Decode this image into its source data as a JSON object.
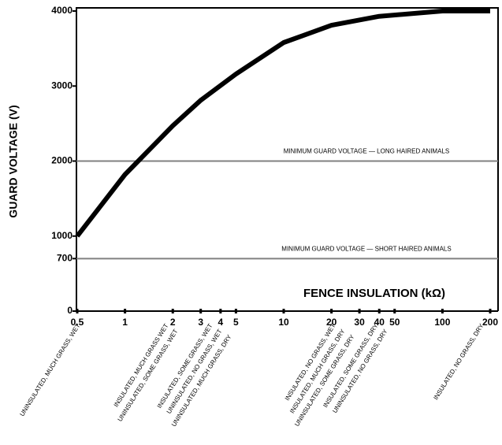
{
  "chart_data": {
    "type": "line",
    "y_axis_title": "GUARD VOLTAGE (V)",
    "x_axis_title": "FENCE INSULATION (kΩ)",
    "x_scale": "log",
    "x": [
      0.5,
      1,
      2,
      3,
      5,
      10,
      20,
      40,
      100,
      200
    ],
    "series": [
      {
        "color": "#000000",
        "values": [
          1000,
          1820,
          2470,
          2810,
          3160,
          3580,
          3810,
          3930,
          4000,
          4000
        ]
      }
    ],
    "xlim": [
      0.5,
      200
    ],
    "xticks": [
      0.5,
      1,
      2,
      3,
      4,
      5,
      10,
      20,
      30,
      40,
      50,
      100,
      200
    ],
    "ylim": [
      0,
      4000
    ],
    "yticks": [
      0,
      700,
      1000,
      2000,
      3000,
      4000
    ],
    "reference_lines": [
      {
        "value": 2000,
        "label": "MINIMUM GUARD VOLTAGE — LONG HAIRED ANIMALS",
        "color": "#808080"
      },
      {
        "value": 700,
        "label": "MINIMUM GUARD VOLTAGE — SHORT HAIRED ANIMALS",
        "color": "#808080"
      }
    ],
    "annotations": [
      [
        "UNINSULATED, MUCH GRASS, WET"
      ],
      [
        "INSULATED, MUCH GRASS WET",
        "UNINSULATED, SOME GRASS, WET"
      ],
      [
        "INSULATED, SOME GRASS, WET",
        "UNINSULATED, NO GRASS, WET",
        "UNINSULATED, MUCH GRASS, DRY"
      ],
      [
        "INSULATED, NO GRASS, WET",
        "INSULATED, MUCH GRASS, DRY",
        "UNINSULATED, SOME GRASS, DRY"
      ],
      [
        "INSULATED, SOME GRASS, DRY",
        "UNINSULATED, NO GRASS, DRY"
      ],
      [
        "INSULATED, NO GRASS, DRY"
      ]
    ]
  }
}
